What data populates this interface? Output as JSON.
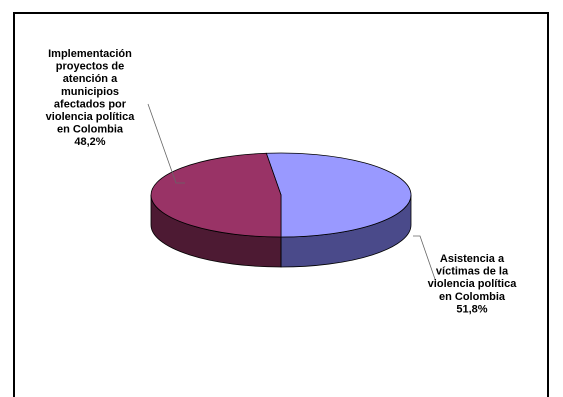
{
  "chart_data": {
    "type": "pie",
    "style": "3d",
    "title": "",
    "slices": [
      {
        "label": "Asistencia a víctimas de la violencia política en Colombia",
        "label_lines": [
          "Asistencia a",
          "víctimas de la",
          "violencia política",
          "en Colombia"
        ],
        "value": 51.8,
        "value_label": "51,8%",
        "color": "#9999ff",
        "side_color": "#4a4a8a"
      },
      {
        "label": "Implementación proyectos de atención a municipios afectados por violencia política en Colombia",
        "label_lines": [
          "Implementación",
          "proyectos de",
          "atención a",
          "municipios",
          "afectados por",
          "violencia política",
          "en Colombia"
        ],
        "value": 48.2,
        "value_label": "48,2%",
        "color": "#993366",
        "side_color": "#4d1a33"
      }
    ]
  }
}
